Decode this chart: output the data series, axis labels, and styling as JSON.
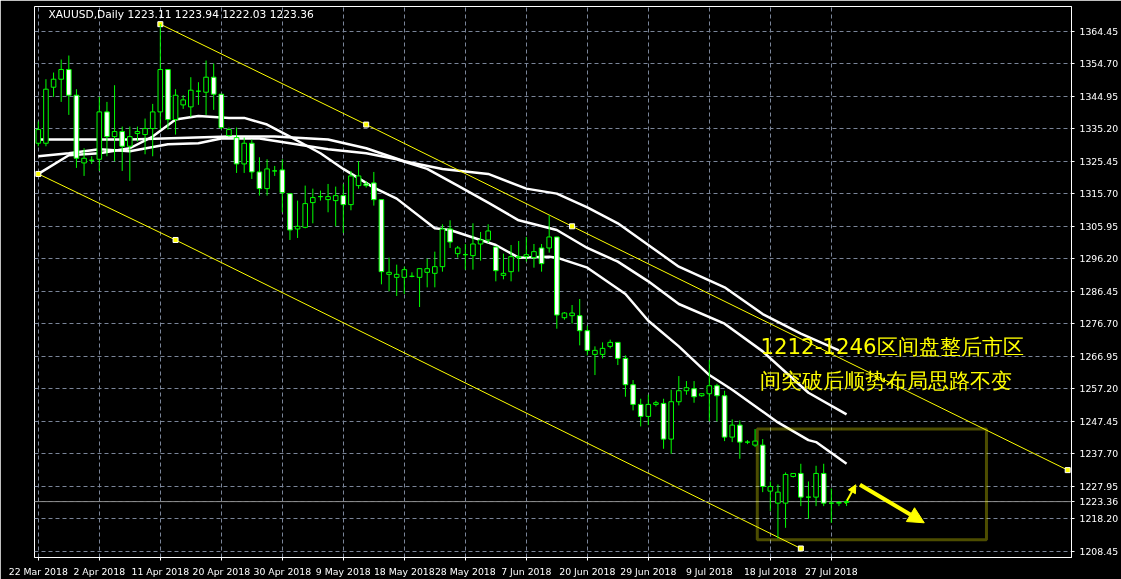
{
  "chart_data": {
    "type": "candlestick",
    "title": "XAUUSD,Daily  1223.11 1223.94 1222.03 1223.36",
    "annotations": [
      "1212-1246区间盘整后市区",
      "间突破后顺势布局思路不变"
    ],
    "ylim": [
      1206.6,
      1371.8
    ],
    "categories": [
      "22 Mar 2018",
      null,
      null,
      null,
      null,
      null,
      null,
      null,
      "2 Apr 2018",
      null,
      null,
      null,
      null,
      null,
      null,
      null,
      "11 Apr 2018",
      null,
      null,
      null,
      null,
      null,
      null,
      null,
      "20 Apr 2018",
      null,
      null,
      null,
      null,
      null,
      null,
      null,
      "30 Apr 2018",
      null,
      null,
      null,
      null,
      null,
      null,
      null,
      "9 May 2018",
      null,
      null,
      null,
      null,
      null,
      null,
      null,
      "18 May 2018",
      null,
      null,
      null,
      null,
      null,
      null,
      null,
      "28 May 2018",
      null,
      null,
      null,
      null,
      null,
      null,
      null,
      "7 Jun 2018",
      null,
      null,
      null,
      null,
      null,
      null,
      null,
      "20 Jun 2018",
      null,
      null,
      null,
      null,
      null,
      null,
      null,
      "29 Jun 2018",
      null,
      null,
      null,
      null,
      null,
      null,
      null,
      "9 Jul 2018",
      null,
      null,
      null,
      null,
      null,
      null,
      null,
      "18 Jul 2018",
      null,
      null,
      null,
      null,
      null,
      null,
      null,
      "27 Jul 2018",
      null,
      null,
      null,
      null,
      null,
      null,
      null,
      null,
      null,
      null,
      null,
      null,
      null,
      null,
      null,
      null,
      null,
      null,
      null,
      null,
      null,
      null,
      null,
      null,
      null,
      null,
      null,
      null,
      null,
      null,
      null
    ],
    "yticks": [
      1364.45,
      {
        "value": 1354.7,
        "label": "1354.70"
      },
      1344.95,
      {
        "value": 1335.2,
        "label": "1335.20"
      },
      1325.45,
      {
        "value": 1315.7,
        "label": "1315.70"
      },
      1305.95,
      {
        "value": 1296.2,
        "label": "1296.20"
      },
      1286.45,
      {
        "value": 1276.7,
        "label": "1276.70"
      },
      1266.95,
      {
        "value": 1257.2,
        "label": "1257.20"
      },
      1247.45,
      {
        "value": 1237.7,
        "label": "1237.70"
      },
      1227.95,
      {
        "value": 1218.2,
        "label": "1218.20"
      },
      1208.45
    ],
    "grid": true,
    "ref_lines": [
      {
        "axis": "y",
        "value": 1223.36,
        "label": "1223.36",
        "color": "#8c8c8c"
      }
    ],
    "series": [
      {
        "type": "line",
        "color": "#ffffff",
        "values": [
          1321.6,
          null,
          null,
          null,
          1327.2,
          null,
          null,
          null,
          1327.8,
          null,
          null,
          null,
          1329.3,
          null,
          null,
          1332.8,
          null,
          null,
          1337.9,
          null,
          null,
          1339.0,
          null,
          null,
          null,
          1338.4,
          null,
          1338.4,
          null,
          null,
          1336.4,
          null,
          null,
          1332.8,
          null,
          null,
          null,
          1327.8,
          null,
          null,
          1323.1,
          null,
          null,
          null,
          1317.5,
          null,
          null,
          1314.2,
          null,
          null,
          null,
          null,
          1305.3,
          null,
          1304.8,
          null,
          null,
          null,
          null,
          null,
          1300.3,
          null,
          null,
          1296.5,
          null,
          null,
          null,
          1296.8,
          1296.5,
          null,
          null,
          null,
          1293.5,
          null,
          null,
          null,
          null,
          1285.6,
          null,
          null,
          1277.6,
          null,
          null,
          null,
          1269.9,
          null,
          null,
          null,
          1261.3,
          null,
          null,
          1256.9,
          null,
          null,
          null,
          null,
          null,
          1247.1,
          null,
          null,
          null,
          1241.8,
          1241.2,
          null,
          null,
          null,
          1234.7,
          null,
          null,
          null,
          null,
          null,
          null,
          null,
          null,
          null,
          null,
          null,
          null,
          null,
          null,
          null,
          null,
          null,
          null,
          null,
          null,
          null,
          null,
          null,
          null,
          null,
          null,
          null,
          null,
          null
        ]
      },
      {
        "type": "line",
        "color": "#ffffff",
        "values": [
          1326.9,
          null,
          null,
          null,
          1327.8,
          null,
          null,
          null,
          1329.0,
          null,
          null,
          null,
          1328.4,
          null,
          null,
          null,
          null,
          1330.5,
          null,
          null,
          null,
          1330.8,
          null,
          null,
          1332.2,
          null,
          null,
          null,
          null,
          1332.2,
          null,
          null,
          null,
          1330.8,
          null,
          null,
          null,
          null,
          1329.0,
          null,
          null,
          null,
          null,
          1327.8,
          null,
          null,
          null,
          1326.0,
          null,
          null,
          null,
          1323.1,
          null,
          null,
          null,
          1318.1,
          null,
          null,
          null,
          1313.0,
          null,
          null,
          null,
          1307.7,
          null,
          null,
          null,
          null,
          1304.8,
          null,
          null,
          null,
          1299.4,
          null,
          null,
          null,
          1295.3,
          null,
          null,
          null,
          1289.4,
          null,
          null,
          null,
          1282.6,
          null,
          null,
          null,
          null,
          null,
          1276.7,
          null,
          null,
          null,
          null,
          1268.4,
          null,
          null,
          null,
          null,
          null,
          1256.0,
          null,
          null,
          null,
          null,
          1249.5,
          null,
          null,
          null,
          null,
          null,
          null,
          null,
          null,
          null,
          null,
          null,
          null,
          null,
          null,
          null,
          null,
          null,
          null,
          null,
          null,
          null,
          null,
          null,
          null,
          null,
          null,
          null,
          null,
          null
        ]
      },
      {
        "type": "line",
        "color": "#ffffff",
        "values": [
          1331.9,
          null,
          null,
          null,
          null,
          null,
          null,
          null,
          null,
          null,
          null,
          null,
          1331.9,
          null,
          null,
          null,
          null,
          null,
          null,
          null,
          null,
          null,
          null,
          null,
          null,
          1332.8,
          null,
          null,
          null,
          null,
          null,
          1332.8,
          null,
          null,
          null,
          null,
          null,
          null,
          1331.9,
          null,
          null,
          null,
          null,
          1329.3,
          null,
          null,
          null,
          null,
          1325.4,
          null,
          null,
          null,
          null,
          1323.1,
          null,
          null,
          null,
          null,
          null,
          1321.6,
          null,
          null,
          null,
          null,
          1317.2,
          null,
          null,
          null,
          1315.7,
          null,
          null,
          null,
          1311.6,
          null,
          null,
          null,
          1306.8,
          null,
          null,
          null,
          1300.3,
          null,
          null,
          null,
          1293.8,
          null,
          null,
          null,
          null,
          null,
          1287.6,
          null,
          null,
          null,
          null,
          1279.6,
          null,
          null,
          null,
          null,
          1273.7,
          null,
          null,
          null,
          null,
          1268.7,
          null,
          null,
          null,
          null,
          null,
          null,
          null,
          null,
          null,
          null,
          null,
          null,
          null,
          null,
          null,
          null,
          null,
          null,
          null,
          null,
          null,
          null,
          null,
          null,
          null,
          null,
          null,
          null,
          null,
          null
        ]
      },
      {
        "type": "line",
        "color": "#ffff00",
        "marker": "square",
        "values": [
          null,
          null,
          null,
          null,
          null,
          null,
          null,
          null,
          null,
          null,
          null,
          null,
          null,
          null,
          null,
          null,
          1366.5,
          null,
          null,
          null,
          null,
          null,
          null,
          null,
          null,
          null,
          null,
          null,
          null,
          null,
          null,
          null,
          null,
          null,
          null,
          null,
          null,
          null,
          null,
          null,
          null,
          null,
          null,
          1336.4,
          null,
          null,
          null,
          null,
          null,
          null,
          null,
          null,
          null,
          null,
          null,
          null,
          null,
          null,
          null,
          null,
          null,
          null,
          null,
          null,
          null,
          null,
          null,
          null,
          null,
          null,
          1305.9,
          null,
          null,
          null,
          null,
          null,
          null,
          null,
          null,
          null,
          null,
          null,
          null,
          null,
          null,
          null,
          null,
          null,
          null,
          null,
          null,
          null,
          null,
          null,
          null,
          null,
          null,
          null,
          null,
          null,
          null,
          null,
          null,
          null,
          null,
          null,
          null,
          null,
          null,
          null,
          null,
          null,
          null,
          null,
          null,
          null,
          null,
          null,
          null,
          null,
          null,
          null,
          null,
          null,
          null,
          null,
          null,
          null,
          null,
          null,
          null,
          null,
          null,
          null,
          null,
          1232.8
        ]
      },
      {
        "type": "line",
        "color": "#ffff00",
        "marker": "square",
        "values": [
          1321.6,
          null,
          null,
          null,
          null,
          null,
          null,
          null,
          null,
          null,
          null,
          null,
          null,
          null,
          null,
          null,
          null,
          null,
          1301.8,
          null,
          null,
          null,
          null,
          null,
          null,
          null,
          null,
          null,
          null,
          null,
          null,
          null,
          null,
          null,
          null,
          null,
          null,
          null,
          null,
          null,
          null,
          null,
          null,
          null,
          null,
          null,
          null,
          null,
          null,
          null,
          null,
          null,
          null,
          null,
          null,
          null,
          null,
          null,
          null,
          null,
          null,
          null,
          null,
          null,
          null,
          null,
          null,
          null,
          null,
          null,
          null,
          null,
          null,
          null,
          null,
          null,
          null,
          null,
          null,
          null,
          null,
          null,
          null,
          null,
          null,
          null,
          null,
          null,
          null,
          null,
          null,
          null,
          null,
          null,
          null,
          null,
          null,
          null,
          null,
          null,
          1209.3,
          null,
          null,
          null,
          null,
          null,
          null,
          null,
          null,
          null,
          null,
          null,
          null,
          null,
          null,
          null,
          null,
          null,
          null,
          null,
          null,
          null,
          null,
          null,
          null,
          null,
          null,
          null,
          null,
          null,
          null,
          null,
          null,
          null,
          null,
          null
        ]
      },
      {
        "color": "#00ff00",
        "ohlc": [
          [
            1330.8,
            1337.3,
            1329.9,
            1334.9
          ],
          [
            1330.8,
            1350.0,
            1329.9,
            1347.0
          ],
          [
            1347.6,
            1352.0,
            1344.7,
            1350.0
          ],
          [
            1350.0,
            1355.9,
            1343.2,
            1352.9
          ],
          [
            1352.9,
            1357.1,
            1339.3,
            1345.2
          ],
          [
            1345.2,
            1347.0,
            1323.4,
            1326.3
          ],
          [
            1324.9,
            1329.3,
            1321.0,
            1326.3
          ],
          [
            1325.7,
            1326.9,
            1324.6,
            1325.7
          ],
          [
            1326.0,
            1344.7,
            1322.5,
            1340.2
          ],
          [
            1340.2,
            1343.2,
            1326.9,
            1332.8
          ],
          [
            1332.8,
            1348.2,
            1325.4,
            1334.3
          ],
          [
            1334.3,
            1335.8,
            1322.5,
            1329.9
          ],
          [
            1329.9,
            1335.8,
            1319.5,
            1332.8
          ],
          [
            1333.7,
            1335.8,
            1331.3,
            1334.3
          ],
          [
            1333.4,
            1338.2,
            1327.5,
            1335.2
          ],
          [
            1335.2,
            1342.6,
            1326.9,
            1340.2
          ],
          [
            1340.2,
            1366.5,
            1334.9,
            1352.9
          ],
          [
            1352.9,
            1352.9,
            1334.9,
            1337.9
          ],
          [
            1337.9,
            1347.0,
            1333.4,
            1345.2
          ],
          [
            1342.3,
            1345.2,
            1341.1,
            1343.8
          ],
          [
            1341.7,
            1350.6,
            1338.7,
            1346.7
          ],
          [
            1346.4,
            1349.1,
            1342.3,
            1346.4
          ],
          [
            1346.1,
            1355.6,
            1339.3,
            1350.6
          ],
          [
            1350.6,
            1354.7,
            1340.8,
            1345.5
          ],
          [
            1345.5,
            1345.5,
            1334.9,
            1335.5
          ],
          [
            1333.1,
            1335.5,
            1332.8,
            1334.9
          ],
          [
            1332.5,
            1335.5,
            1321.9,
            1324.6
          ],
          [
            1324.6,
            1332.5,
            1321.9,
            1330.8
          ],
          [
            1330.8,
            1331.9,
            1320.1,
            1322.2
          ],
          [
            1322.2,
            1326.6,
            1315.1,
            1317.2
          ],
          [
            1317.2,
            1326.0,
            1315.1,
            1323.1
          ],
          [
            1322.5,
            1324.0,
            1321.0,
            1322.5
          ],
          [
            1322.8,
            1326.0,
            1310.1,
            1316.0
          ],
          [
            1315.7,
            1315.7,
            1301.8,
            1304.8
          ],
          [
            1305.1,
            1313.6,
            1302.4,
            1305.9
          ],
          [
            1305.6,
            1318.1,
            1305.3,
            1312.7
          ],
          [
            1313.0,
            1317.2,
            1306.8,
            1314.5
          ],
          [
            1314.8,
            1316.6,
            1313.6,
            1314.8
          ],
          [
            1313.9,
            1318.6,
            1310.1,
            1314.8
          ],
          [
            1313.6,
            1317.8,
            1305.9,
            1315.1
          ],
          [
            1315.1,
            1318.6,
            1303.9,
            1312.4
          ],
          [
            1312.4,
            1322.5,
            1310.7,
            1321.0
          ],
          [
            1318.1,
            1325.4,
            1317.2,
            1321.0
          ],
          [
            1318.6,
            1319.5,
            1317.5,
            1318.1
          ],
          [
            1318.9,
            1322.2,
            1312.1,
            1313.9
          ],
          [
            1313.9,
            1313.9,
            1288.5,
            1292.3
          ],
          [
            1291.5,
            1296.5,
            1286.4,
            1292.1
          ],
          [
            1290.6,
            1294.4,
            1285.0,
            1291.5
          ],
          [
            1290.6,
            1293.8,
            1285.6,
            1292.9
          ],
          [
            1290.9,
            1292.1,
            1290.6,
            1290.9
          ],
          [
            1290.6,
            1293.2,
            1281.7,
            1293.2
          ],
          [
            1292.1,
            1296.2,
            1287.6,
            1293.2
          ],
          [
            1291.8,
            1298.3,
            1287.6,
            1293.8
          ],
          [
            1293.8,
            1306.5,
            1292.3,
            1305.1
          ],
          [
            1305.1,
            1307.7,
            1299.4,
            1301.2
          ],
          [
            1297.7,
            1300.0,
            1296.5,
            1299.4
          ],
          [
            1297.4,
            1300.6,
            1292.9,
            1297.4
          ],
          [
            1297.1,
            1306.8,
            1292.9,
            1300.6
          ],
          [
            1300.6,
            1304.2,
            1295.6,
            1301.8
          ],
          [
            1301.8,
            1306.5,
            1300.9,
            1304.5
          ],
          [
            1299.7,
            1299.7,
            1289.4,
            1292.6
          ],
          [
            1291.2,
            1297.7,
            1290.0,
            1291.8
          ],
          [
            1292.3,
            1300.3,
            1289.4,
            1296.8
          ],
          [
            1296.5,
            1301.5,
            1292.3,
            1296.8
          ],
          [
            1296.8,
            1302.7,
            1295.3,
            1297.4
          ],
          [
            1296.5,
            1300.6,
            1293.5,
            1298.3
          ],
          [
            1299.4,
            1300.6,
            1292.3,
            1294.7
          ],
          [
            1299.4,
            1309.2,
            1298.0,
            1302.7
          ],
          [
            1302.7,
            1302.7,
            1275.2,
            1279.3
          ],
          [
            1278.5,
            1280.2,
            1277.9,
            1279.9
          ],
          [
            1279.1,
            1282.3,
            1276.7,
            1279.9
          ],
          [
            1279.1,
            1284.1,
            1270.2,
            1274.6
          ],
          [
            1274.6,
            1276.1,
            1267.2,
            1268.7
          ],
          [
            1267.5,
            1269.9,
            1261.3,
            1268.7
          ],
          [
            1267.5,
            1271.1,
            1266.3,
            1269.3
          ],
          [
            1269.9,
            1271.9,
            1269.3,
            1271.1
          ],
          [
            1271.1,
            1271.1,
            1264.3,
            1266.3
          ],
          [
            1266.3,
            1267.2,
            1254.8,
            1258.4
          ],
          [
            1258.4,
            1259.8,
            1250.7,
            1252.5
          ],
          [
            1252.5,
            1254.2,
            1245.9,
            1248.9
          ],
          [
            1248.9,
            1255.4,
            1246.3,
            1252.5
          ],
          [
            1252.5,
            1253.6,
            1251.9,
            1253.0
          ],
          [
            1252.8,
            1254.2,
            1239.2,
            1242.1
          ],
          [
            1242.1,
            1256.9,
            1237.7,
            1253.3
          ],
          [
            1253.3,
            1261.0,
            1252.2,
            1256.6
          ],
          [
            1256.6,
            1259.5,
            1255.4,
            1257.5
          ],
          [
            1257.2,
            1259.5,
            1253.0,
            1254.8
          ],
          [
            1255.1,
            1255.7,
            1254.8,
            1255.7
          ],
          [
            1255.7,
            1265.8,
            1247.4,
            1258.1
          ],
          [
            1258.1,
            1258.7,
            1247.4,
            1255.1
          ],
          [
            1255.1,
            1256.6,
            1241.5,
            1242.7
          ],
          [
            1242.7,
            1248.0,
            1241.2,
            1246.3
          ],
          [
            1246.3,
            1247.7,
            1236.2,
            1241.2
          ],
          [
            1241.2,
            1241.8,
            1240.6,
            1241.2
          ],
          [
            1240.3,
            1245.1,
            1239.7,
            1241.5
          ],
          [
            1240.3,
            1242.1,
            1226.2,
            1227.9
          ],
          [
            1226.5,
            1229.4,
            1220.5,
            1227.9
          ],
          [
            1222.9,
            1228.5,
            1212.3,
            1226.2
          ],
          [
            1222.9,
            1232.1,
            1215.5,
            1231.5
          ],
          [
            1230.9,
            1231.8,
            1230.6,
            1231.8
          ],
          [
            1231.8,
            1234.7,
            1222.0,
            1224.7
          ],
          [
            1224.7,
            1229.4,
            1218.2,
            1224.7
          ],
          [
            1224.7,
            1234.1,
            1222.0,
            1231.8
          ],
          [
            1231.8,
            1234.7,
            1222.0,
            1222.9
          ],
          [
            1222.9,
            1227.3,
            1217.0,
            1222.9
          ],
          [
            1222.9,
            1223.5,
            1222.0,
            1223.1
          ],
          [
            1223.11,
            1223.94,
            1222.03,
            1223.36
          ],
          null,
          null,
          null,
          null,
          null,
          null,
          null,
          null,
          null,
          null,
          null,
          null,
          null,
          null,
          null,
          null,
          null,
          null,
          null,
          null,
          null,
          null,
          null,
          null,
          null,
          null,
          null,
          null,
          null
        ]
      }
    ]
  }
}
